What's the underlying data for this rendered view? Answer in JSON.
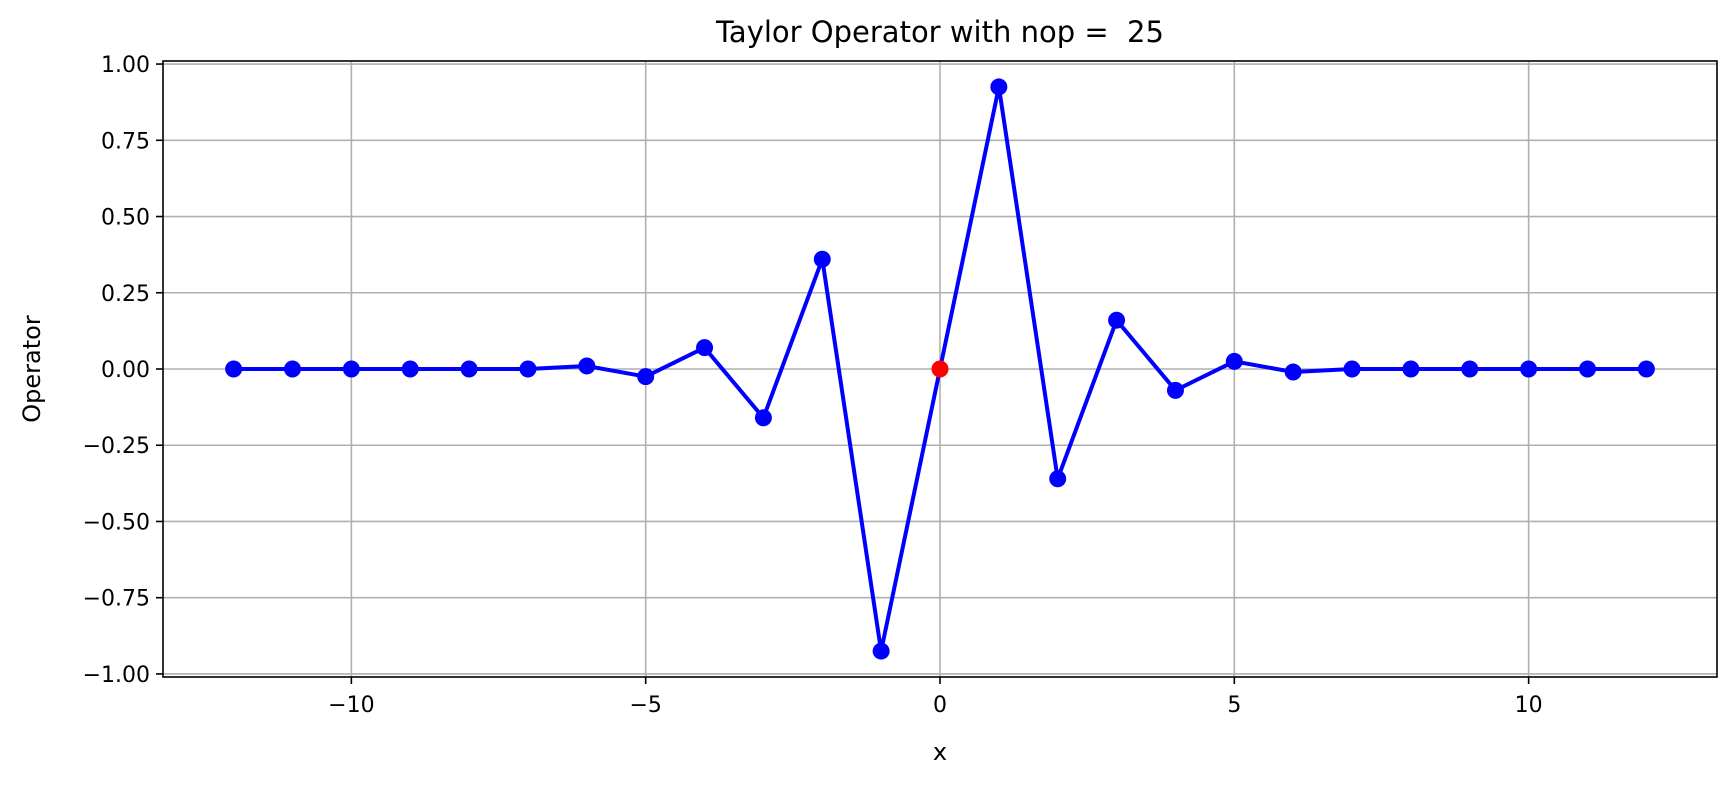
{
  "chart_data": {
    "type": "line",
    "title": "Taylor Operator with nop =  25",
    "xlabel": "x",
    "ylabel": "Operator",
    "xlim": [
      -13.2,
      13.2
    ],
    "ylim": [
      -1.01,
      1.01
    ],
    "grid": true,
    "x_ticks": [
      -10,
      -5,
      0,
      5,
      10
    ],
    "x_tick_labels": [
      "−10",
      "−5",
      "0",
      "5",
      "10"
    ],
    "y_ticks": [
      1.0,
      0.75,
      0.5,
      0.25,
      0.0,
      -0.25,
      -0.5,
      -0.75,
      -1.0
    ],
    "y_tick_labels": [
      "1.00",
      "0.75",
      "0.50",
      "0.25",
      "0.00",
      "−0.25",
      "−0.50",
      "−0.75",
      "−1.00"
    ],
    "x": [
      -12,
      -11,
      -10,
      -9,
      -8,
      -7,
      -6,
      -5,
      -4,
      -3,
      -2,
      -1,
      0,
      1,
      2,
      3,
      4,
      5,
      6,
      7,
      8,
      9,
      10,
      11,
      12
    ],
    "y": [
      0.0,
      0.0,
      0.0,
      0.0,
      0.0,
      0.0,
      0.01,
      -0.025,
      0.07,
      -0.16,
      0.36,
      -0.925,
      0.0,
      0.925,
      -0.36,
      0.16,
      -0.07,
      0.025,
      -0.01,
      0.0,
      0.0,
      0.0,
      0.0,
      0.0,
      0.0
    ],
    "highlight_index": 12,
    "colors": {
      "line": "#0000ff",
      "marker": "#0000ff",
      "highlight": "#ff0000",
      "grid": "#b0b0b0"
    }
  }
}
